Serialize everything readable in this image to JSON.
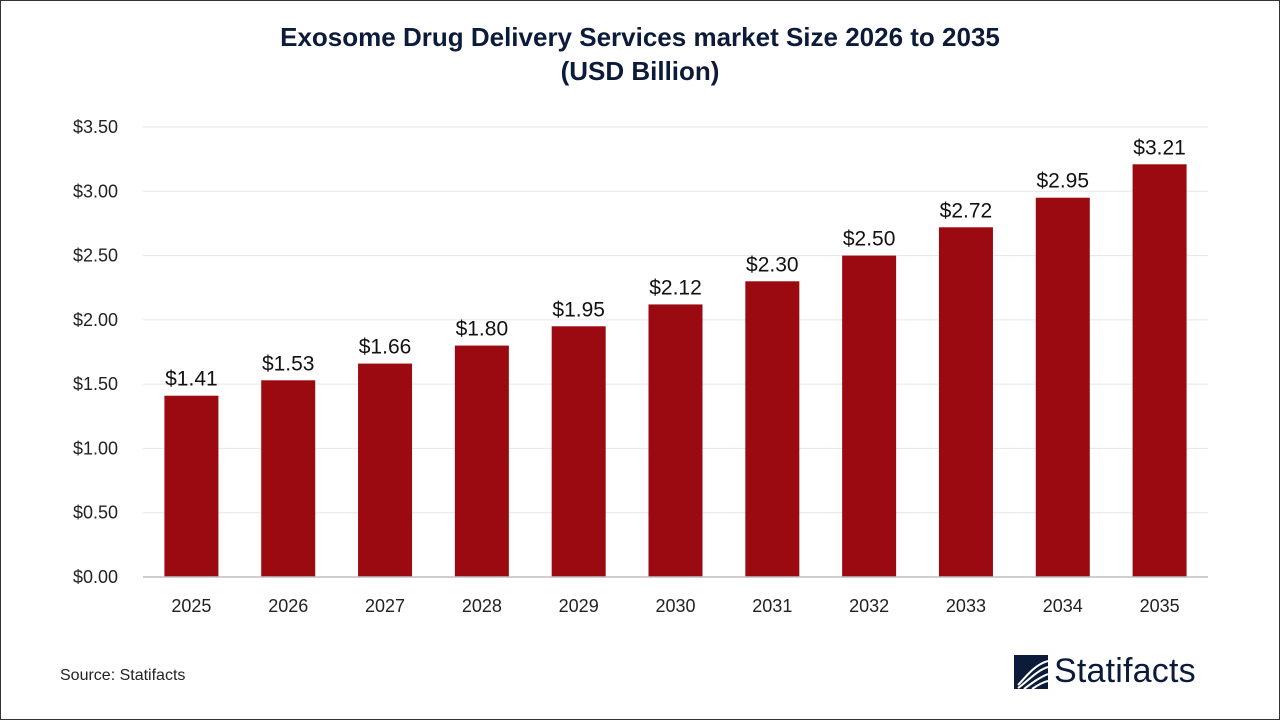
{
  "chart_data": {
    "type": "bar",
    "title": "Exosome Drug Delivery Services market Size 2026 to 2035",
    "subtitle": "(USD Billion)",
    "categories": [
      "2025",
      "2026",
      "2027",
      "2028",
      "2029",
      "2030",
      "2031",
      "2032",
      "2033",
      "2034",
      "2035"
    ],
    "values": [
      1.41,
      1.53,
      1.66,
      1.8,
      1.95,
      2.12,
      2.3,
      2.5,
      2.72,
      2.95,
      3.21
    ],
    "data_labels": [
      "$1.41",
      "$1.53",
      "$1.66",
      "$1.80",
      "$1.95",
      "$2.12",
      "$2.30",
      "$2.50",
      "$2.72",
      "$2.95",
      "$3.21"
    ],
    "yticks": [
      0,
      0.5,
      1,
      1.5,
      2,
      2.5,
      3,
      3.5
    ],
    "ytick_labels": [
      "$0.00",
      "$0.50",
      "$1.00",
      "$1.50",
      "$2.00",
      "$2.50",
      "$3.00",
      "$3.50"
    ],
    "ylim": [
      0,
      3.5
    ],
    "xlabel": "",
    "ylabel": "",
    "grid": true,
    "bar_color": "#9b0a11"
  },
  "source": "Source: Statifacts",
  "logo": {
    "text": "Statifacts",
    "color": "#0d1b3a"
  }
}
